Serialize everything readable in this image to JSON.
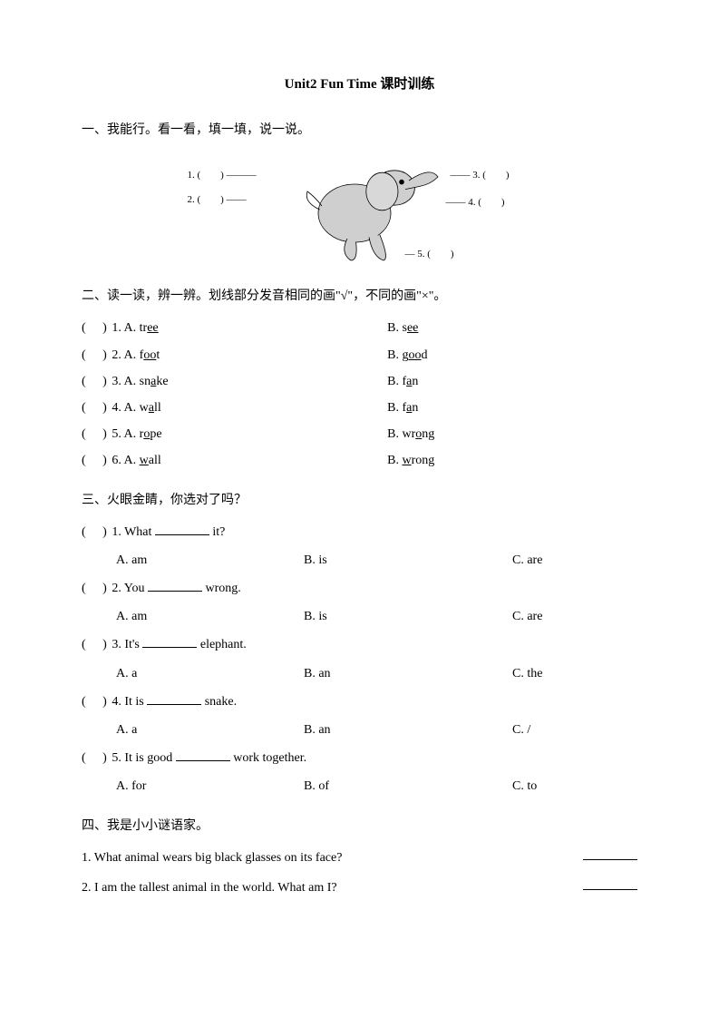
{
  "title": "Unit2 Fun Time 课时训练",
  "section1": {
    "heading": "一、我能行。看一看，填一填，说一说。",
    "labels": {
      "l1": "1. (",
      "l1b": ")",
      "l2": "2. (",
      "l2b": ")",
      "l3": "3. (",
      "l3b": ")",
      "l4": "4. (",
      "l4b": ")",
      "l5": "5. (",
      "l5b": ")"
    }
  },
  "section2": {
    "heading": "二、读一读，辨一辨。划线部分发音相同的画\"√\"，不同的画\"×\"。",
    "items": [
      {
        "n": "1",
        "a_pre": "A. tr",
        "a_u": "ee",
        "a_post": "",
        "b_pre": "B. s",
        "b_u": "ee",
        "b_post": ""
      },
      {
        "n": "2",
        "a_pre": "A. f",
        "a_u": "oo",
        "a_post": "t",
        "b_pre": "B. g",
        "b_u": "oo",
        "b_post": "d"
      },
      {
        "n": "3",
        "a_pre": "A. sn",
        "a_u": "a",
        "a_post": "ke",
        "b_pre": "B. f",
        "b_u": "a",
        "b_post": "n"
      },
      {
        "n": "4",
        "a_pre": "A. w",
        "a_u": "a",
        "a_post": "ll",
        "b_pre": "B. f",
        "b_u": "a",
        "b_post": "n"
      },
      {
        "n": "5",
        "a_pre": "A. r",
        "a_u": "o",
        "a_post": "pe",
        "b_pre": "B. wr",
        "b_u": "o",
        "b_post": "ng"
      },
      {
        "n": "6",
        "a_pre": "A. ",
        "a_u": "w",
        "a_post": "all",
        "b_pre": "B. ",
        "b_u": "w",
        "b_post": "rong"
      }
    ]
  },
  "section3": {
    "heading": "三、火眼金睛，你选对了吗？",
    "items": [
      {
        "n": "1",
        "q_pre": "What ",
        "q_post": " it?",
        "a": "A. am",
        "b": "B. is",
        "c": "C. are"
      },
      {
        "n": "2",
        "q_pre": "You ",
        "q_post": " wrong.",
        "a": "A. am",
        "b": "B. is",
        "c": "C. are"
      },
      {
        "n": "3",
        "q_pre": "It's ",
        "q_post": " elephant.",
        "a": "A. a",
        "b": "B. an",
        "c": "C. the"
      },
      {
        "n": "4",
        "q_pre": "It is ",
        "q_post": " snake.",
        "a": "A. a",
        "b": "B. an",
        "c": "C. /"
      },
      {
        "n": "5",
        "q_pre": "It is good ",
        "q_post": " work together.",
        "a": "A. for",
        "b": "B. of",
        "c": "C. to"
      }
    ]
  },
  "section4": {
    "heading": "四、我是小小谜语家。",
    "items": [
      {
        "n": "1",
        "q": "What animal wears big black glasses on its face?"
      },
      {
        "n": "2",
        "q": "I am the tallest animal in the world. What am I?"
      }
    ]
  }
}
